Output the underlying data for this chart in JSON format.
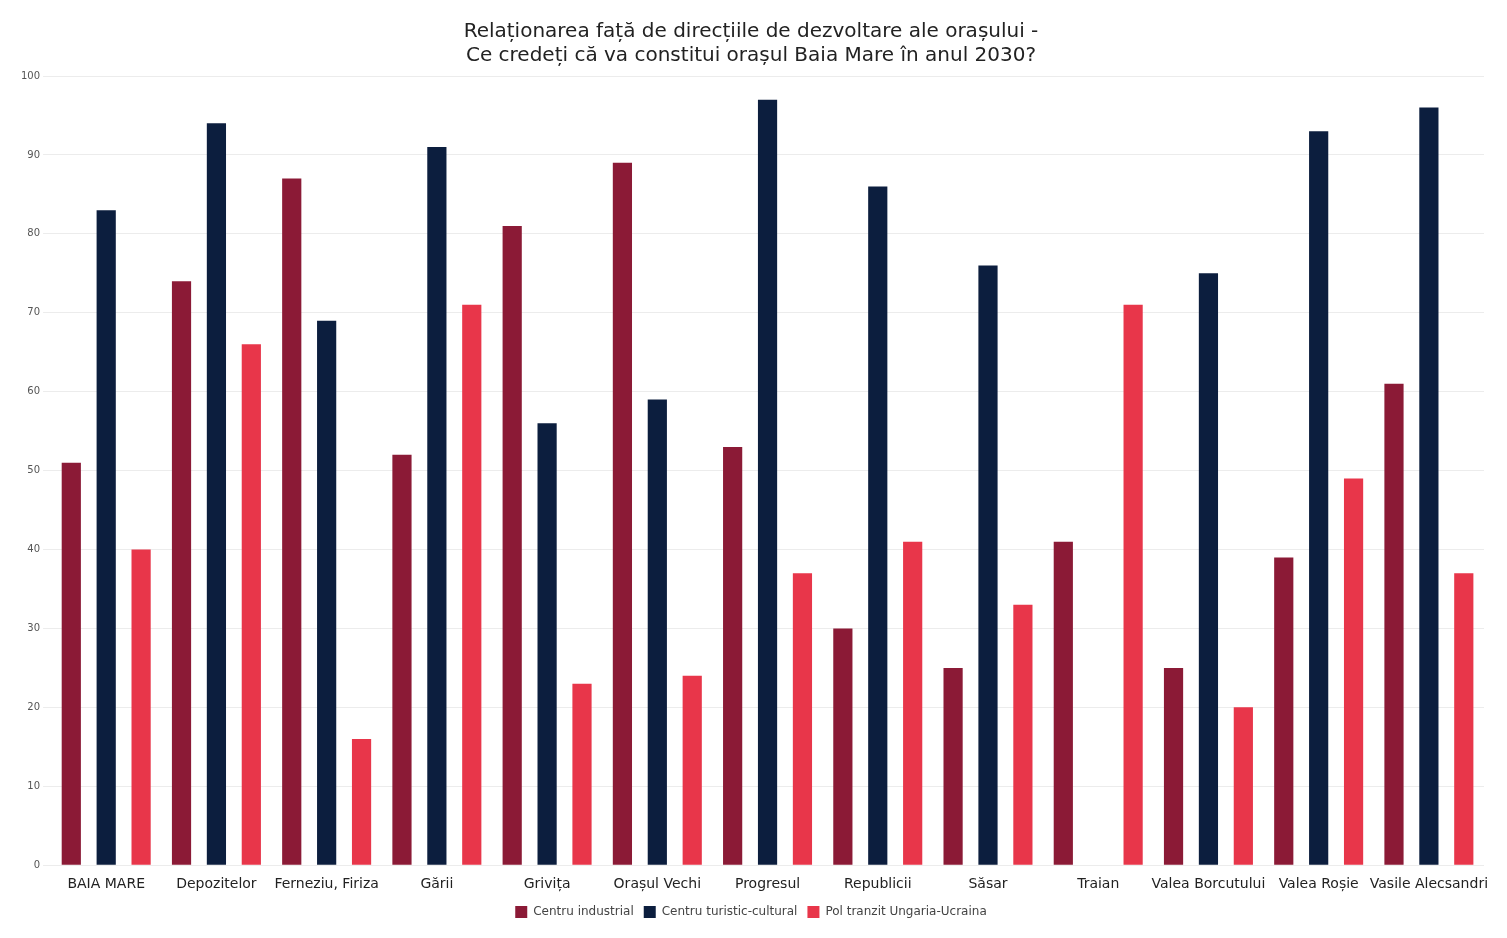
{
  "chart_data": {
    "type": "bar",
    "title": [
      "Relaționarea față de direcțiile de dezvoltare ale orașului -",
      "Ce credeți că va constitui orașul Baia Mare în anul 2030?"
    ],
    "categories": [
      "BAIA MARE",
      "Depozitelor",
      "Ferneziu, Firiza",
      "Gării",
      "Grivița",
      "Orașul Vechi",
      "Progresul",
      "Republicii",
      "Săsar",
      "Traian",
      "Valea Borcutului",
      "Valea Roșie",
      "Vasile Alecsandri"
    ],
    "series": [
      {
        "name": "Centru industrial",
        "color": "#8b1a36",
        "values": [
          51,
          74,
          87,
          52,
          81,
          89,
          53,
          30,
          25,
          41,
          25,
          39,
          61
        ]
      },
      {
        "name": "Centru turistic-cultural",
        "color": "#0c1e3e",
        "values": [
          83,
          94,
          69,
          91,
          56,
          59,
          97,
          86,
          76,
          0,
          75,
          93,
          96
        ]
      },
      {
        "name": "Pol tranzit Ungaria-Ucraina",
        "color": "#e8364a",
        "values": [
          40,
          66,
          16,
          71,
          23,
          24,
          37,
          41,
          33,
          71,
          20,
          49,
          37
        ]
      }
    ],
    "ylim": [
      0,
      100
    ],
    "yticks": [
      0,
      10,
      20,
      30,
      40,
      50,
      60,
      70,
      80,
      90,
      100
    ],
    "grid": "y",
    "legend": "bottom"
  }
}
